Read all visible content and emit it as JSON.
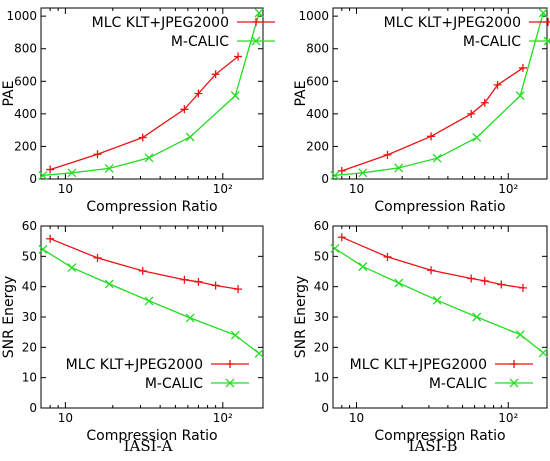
{
  "colors": {
    "mlc": "#ee1111",
    "mcalic": "#22dd22",
    "axis": "#000000"
  },
  "captions": [
    "IASI-A",
    "IASI-B"
  ],
  "chart_data": [
    {
      "panel": "IASI-A",
      "type": "line",
      "xlabel": "Compression Ratio",
      "ylabel": "PAE",
      "xscale": "log",
      "xlim": [
        7,
        180
      ],
      "ylim": [
        0,
        1050
      ],
      "xticks": [
        10,
        100
      ],
      "xtick_labels": [
        "10",
        "10²"
      ],
      "yticks": [
        0,
        200,
        400,
        600,
        800,
        1000
      ],
      "legend_position": "top-left",
      "grid": false,
      "series": [
        {
          "name": "MLC KLT+JPEG2000",
          "marker": "plus",
          "x": [
            8,
            16,
            31,
            57,
            70,
            90,
            125
          ],
          "y": [
            58,
            152,
            255,
            428,
            525,
            643,
            752
          ]
        },
        {
          "name": "M-CALIC",
          "marker": "x",
          "x": [
            7.2,
            11,
            19,
            34,
            62,
            120,
            170
          ],
          "y": [
            22,
            38,
            65,
            130,
            258,
            512,
            1020
          ]
        }
      ]
    },
    {
      "panel": "IASI-B",
      "type": "line",
      "xlabel": "Compression Ratio",
      "ylabel": "PAE",
      "xscale": "log",
      "xlim": [
        7,
        180
      ],
      "ylim": [
        0,
        1050
      ],
      "xticks": [
        10,
        100
      ],
      "xtick_labels": [
        "10",
        "10²"
      ],
      "yticks": [
        0,
        200,
        400,
        600,
        800,
        1000
      ],
      "legend_position": "top-left",
      "grid": false,
      "series": [
        {
          "name": "MLC KLT+JPEG2000",
          "marker": "plus",
          "x": [
            8,
            16,
            31,
            57,
            70,
            85,
            125
          ],
          "y": [
            50,
            148,
            262,
            400,
            468,
            578,
            682
          ]
        },
        {
          "name": "M-CALIC",
          "marker": "x",
          "x": [
            7.2,
            11,
            19,
            34,
            62,
            120,
            170
          ],
          "y": [
            22,
            38,
            68,
            128,
            255,
            512,
            1020
          ]
        }
      ]
    },
    {
      "panel": "IASI-A",
      "type": "line",
      "xlabel": "Compression Ratio",
      "ylabel": "SNR Energy",
      "xscale": "log",
      "xlim": [
        7,
        180
      ],
      "ylim": [
        0,
        60
      ],
      "xticks": [
        10,
        100
      ],
      "xtick_labels": [
        "10",
        "10²"
      ],
      "yticks": [
        0,
        10,
        20,
        30,
        40,
        50,
        60
      ],
      "legend_position": "bottom-right",
      "grid": false,
      "series": [
        {
          "name": "MLC KLT+JPEG2000",
          "marker": "plus",
          "x": [
            8,
            16,
            31,
            57,
            70,
            90,
            125
          ],
          "y": [
            55.8,
            49.5,
            45.2,
            42.3,
            41.6,
            40.4,
            39.2
          ]
        },
        {
          "name": "M-CALIC",
          "marker": "x",
          "x": [
            7.2,
            11,
            19,
            34,
            62,
            120,
            170
          ],
          "y": [
            52.3,
            46.3,
            40.9,
            35.3,
            29.7,
            24.0,
            18.0
          ]
        }
      ]
    },
    {
      "panel": "IASI-B",
      "type": "line",
      "xlabel": "Compression Ratio",
      "ylabel": "SNR Energy",
      "xscale": "log",
      "xlim": [
        7,
        180
      ],
      "ylim": [
        0,
        60
      ],
      "xticks": [
        10,
        100
      ],
      "xtick_labels": [
        "10",
        "10²"
      ],
      "yticks": [
        0,
        10,
        20,
        30,
        40,
        50,
        60
      ],
      "legend_position": "bottom-right",
      "grid": false,
      "series": [
        {
          "name": "MLC KLT+JPEG2000",
          "marker": "plus",
          "x": [
            8,
            16,
            31,
            57,
            70,
            90,
            125
          ],
          "y": [
            56.3,
            49.8,
            45.4,
            42.7,
            41.9,
            40.7,
            39.6
          ]
        },
        {
          "name": "M-CALIC",
          "marker": "x",
          "x": [
            7.2,
            11,
            19,
            34,
            62,
            120,
            170
          ],
          "y": [
            52.6,
            46.6,
            41.2,
            35.5,
            30.0,
            24.2,
            18.2
          ]
        }
      ]
    }
  ]
}
